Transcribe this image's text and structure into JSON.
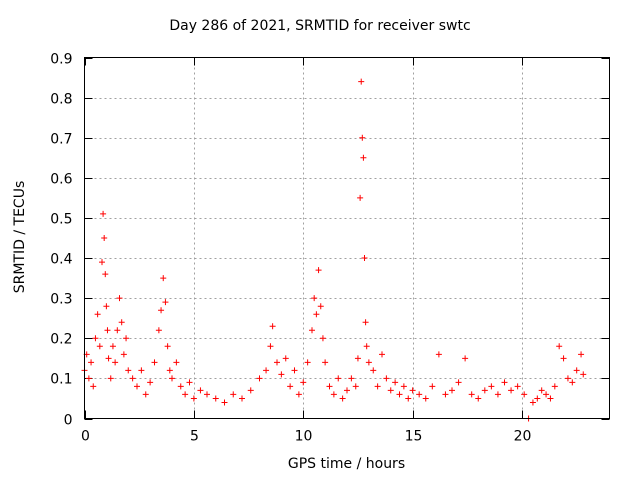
{
  "chart_data": {
    "type": "scatter",
    "title": "Day 286 of 2021, SRMTID for receiver swtc",
    "xlabel": "GPS time / hours",
    "ylabel": "SRMTID / TECUs",
    "xlim": [
      0,
      24
    ],
    "ylim": [
      0,
      0.9
    ],
    "x_ticks": [
      0,
      5,
      10,
      15,
      20
    ],
    "x_tick_labels": [
      "0",
      "5",
      "10",
      "15",
      "20"
    ],
    "y_ticks": [
      0,
      0.1,
      0.2,
      0.3,
      0.4,
      0.5,
      0.6,
      0.7,
      0.8,
      0.9
    ],
    "y_tick_labels": [
      "0",
      "0.1",
      "0.2",
      "0.3",
      "0.4",
      "0.5",
      "0.6",
      "0.7",
      "0.8",
      "0.9"
    ],
    "grid": true,
    "marker": "+",
    "color": "#ff0000",
    "series": [
      {
        "name": "SRMTID",
        "x": [
          0.0,
          0.1,
          0.2,
          0.3,
          0.4,
          0.5,
          0.6,
          0.7,
          0.8,
          0.85,
          0.9,
          0.95,
          1.0,
          1.05,
          1.1,
          1.2,
          1.3,
          1.4,
          1.5,
          1.6,
          1.7,
          1.8,
          1.9,
          2.0,
          2.2,
          2.4,
          2.6,
          2.8,
          3.0,
          3.2,
          3.4,
          3.5,
          3.6,
          3.7,
          3.8,
          3.9,
          4.0,
          4.2,
          4.4,
          4.6,
          4.8,
          5.0,
          5.3,
          5.6,
          6.0,
          6.4,
          6.8,
          7.2,
          7.6,
          8.0,
          8.3,
          8.5,
          8.6,
          8.8,
          9.0,
          9.2,
          9.4,
          9.6,
          9.8,
          10.0,
          10.2,
          10.4,
          10.5,
          10.6,
          10.7,
          10.8,
          10.9,
          11.0,
          11.2,
          11.4,
          11.6,
          11.8,
          12.0,
          12.2,
          12.4,
          12.5,
          12.6,
          12.65,
          12.7,
          12.75,
          12.8,
          12.85,
          12.9,
          13.0,
          13.2,
          13.4,
          13.6,
          13.8,
          14.0,
          14.2,
          14.4,
          14.6,
          14.8,
          15.0,
          15.3,
          15.6,
          15.9,
          16.2,
          16.5,
          16.8,
          17.1,
          17.4,
          17.7,
          18.0,
          18.3,
          18.6,
          18.9,
          19.2,
          19.5,
          19.8,
          20.1,
          20.3,
          20.5,
          20.7,
          20.9,
          21.1,
          21.3,
          21.5,
          21.7,
          21.9,
          22.1,
          22.3,
          22.5,
          22.7,
          22.8
        ],
        "y": [
          0.12,
          0.16,
          0.1,
          0.14,
          0.08,
          0.2,
          0.26,
          0.18,
          0.39,
          0.51,
          0.45,
          0.36,
          0.28,
          0.22,
          0.15,
          0.1,
          0.18,
          0.14,
          0.22,
          0.3,
          0.24,
          0.16,
          0.2,
          0.12,
          0.1,
          0.08,
          0.12,
          0.06,
          0.09,
          0.14,
          0.22,
          0.27,
          0.35,
          0.29,
          0.18,
          0.12,
          0.1,
          0.14,
          0.08,
          0.06,
          0.09,
          0.05,
          0.07,
          0.06,
          0.05,
          0.04,
          0.06,
          0.05,
          0.07,
          0.1,
          0.12,
          0.18,
          0.23,
          0.14,
          0.11,
          0.15,
          0.08,
          0.12,
          0.06,
          0.09,
          0.14,
          0.22,
          0.3,
          0.26,
          0.37,
          0.28,
          0.2,
          0.14,
          0.08,
          0.06,
          0.1,
          0.05,
          0.07,
          0.1,
          0.08,
          0.15,
          0.55,
          0.84,
          0.7,
          0.65,
          0.4,
          0.24,
          0.18,
          0.14,
          0.12,
          0.08,
          0.16,
          0.1,
          0.07,
          0.09,
          0.06,
          0.08,
          0.05,
          0.07,
          0.06,
          0.05,
          0.08,
          0.16,
          0.06,
          0.07,
          0.09,
          0.15,
          0.06,
          0.05,
          0.07,
          0.08,
          0.06,
          0.09,
          0.07,
          0.08,
          0.06,
          0.0,
          0.04,
          0.05,
          0.07,
          0.06,
          0.05,
          0.08,
          0.18,
          0.15,
          0.1,
          0.09,
          0.12,
          0.16,
          0.11
        ]
      }
    ]
  }
}
